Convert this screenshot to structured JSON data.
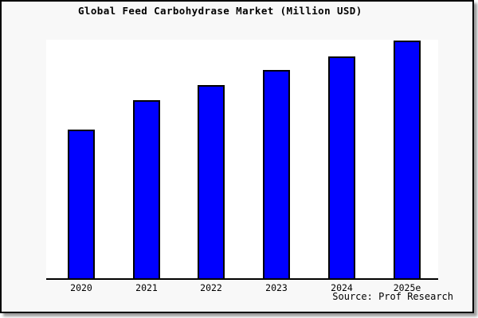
{
  "window": {
    "background_color": "#f8f8f8",
    "frame_border_color": "#000000",
    "plot_background_color": "#ffffff"
  },
  "chart": {
    "title": "Global Feed Carbohydrase Market (Million USD)",
    "source": "Source: Prof Research",
    "bar_color": "#0000ff",
    "bar_border_color": "#000000"
  },
  "chart_data": {
    "type": "bar",
    "title": "Global Feed Carbohydrase Market (Million USD)",
    "categories": [
      "2020",
      "2021",
      "2022",
      "2023",
      "2024",
      "2025e"
    ],
    "values": [
      62.8,
      74.9,
      81.4,
      87.8,
      93.6,
      100
    ],
    "xlabel": "",
    "ylabel": "",
    "ylim": [
      0,
      100.5
    ],
    "grid": false,
    "legend": false,
    "annotations": [
      "Source: Prof Research"
    ]
  }
}
